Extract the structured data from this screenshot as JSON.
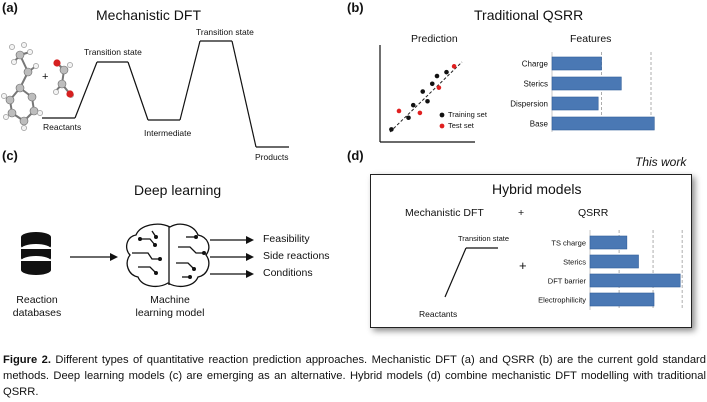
{
  "panel_a": {
    "letter": "(a)",
    "title": "Mechanistic DFT",
    "labels": {
      "ts1": "Transition state",
      "ts2": "Transition state",
      "reactants": "Reactants",
      "intermediate": "Intermediate",
      "products": "Products"
    }
  },
  "panel_b": {
    "letter": "(b)",
    "title": "Traditional QSRR",
    "scatter_title": "Prediction",
    "features_title": "Features",
    "legend": {
      "training": "Training set",
      "test": "Test set"
    }
  },
  "panel_c": {
    "letter": "(c)",
    "title": "Deep learning",
    "db_label_1": "Reaction",
    "db_label_2": "databases",
    "ml_label_1": "Machine",
    "ml_label_2": "learning model",
    "outputs": [
      "Feasibility",
      "Side reactions",
      "Conditions"
    ]
  },
  "panel_d": {
    "letter": "(d)",
    "this_work": "This work",
    "title": "Hybrid models",
    "left_heading": "Mechanistic DFT",
    "plus": "+",
    "right_heading": "QSRR",
    "ts_label": "Transition state",
    "reactants": "Reactants",
    "plus2": "+"
  },
  "chart_data": [
    {
      "type": "bar",
      "orientation": "horizontal",
      "title": "Features",
      "categories": [
        "Charge",
        "Sterics",
        "Dispersion",
        "Base"
      ],
      "values": [
        0.3,
        0.42,
        0.28,
        0.62
      ],
      "grid": true,
      "color": "#4a78b4"
    },
    {
      "type": "bar",
      "orientation": "horizontal",
      "title": "",
      "categories": [
        "TS charge",
        "Sterics",
        "DFT barrier",
        "Electrophilicity"
      ],
      "values": [
        0.38,
        0.5,
        0.93,
        0.66
      ],
      "grid": true,
      "color": "#4a78b4"
    },
    {
      "type": "scatter",
      "title": "Prediction",
      "series": [
        {
          "name": "Training set",
          "color": "#111111",
          "points": [
            [
              0.12,
              0.13
            ],
            [
              0.3,
              0.25
            ],
            [
              0.35,
              0.38
            ],
            [
              0.5,
              0.42
            ],
            [
              0.45,
              0.52
            ],
            [
              0.55,
              0.6
            ],
            [
              0.6,
              0.68
            ],
            [
              0.7,
              0.72
            ]
          ]
        },
        {
          "name": "Test set",
          "color": "#e02020",
          "points": [
            [
              0.2,
              0.32
            ],
            [
              0.42,
              0.3
            ],
            [
              0.62,
              0.56
            ],
            [
              0.78,
              0.78
            ]
          ]
        }
      ]
    }
  ],
  "caption": {
    "label": "Figure 2.",
    "text": " Different types of quantitative reaction prediction approaches. Mechanistic DFT (a) and QSRR (b) are the current gold standard methods. Deep learning models (c) are emerging as an alternative. Hybrid models (d) combine mechanistic DFT modelling with traditional QSRR."
  },
  "colors": {
    "bar": "#4a78b4",
    "red_atom": "#d62020",
    "atom_grey": "#9a9a9a",
    "atom_white": "#ececec"
  }
}
